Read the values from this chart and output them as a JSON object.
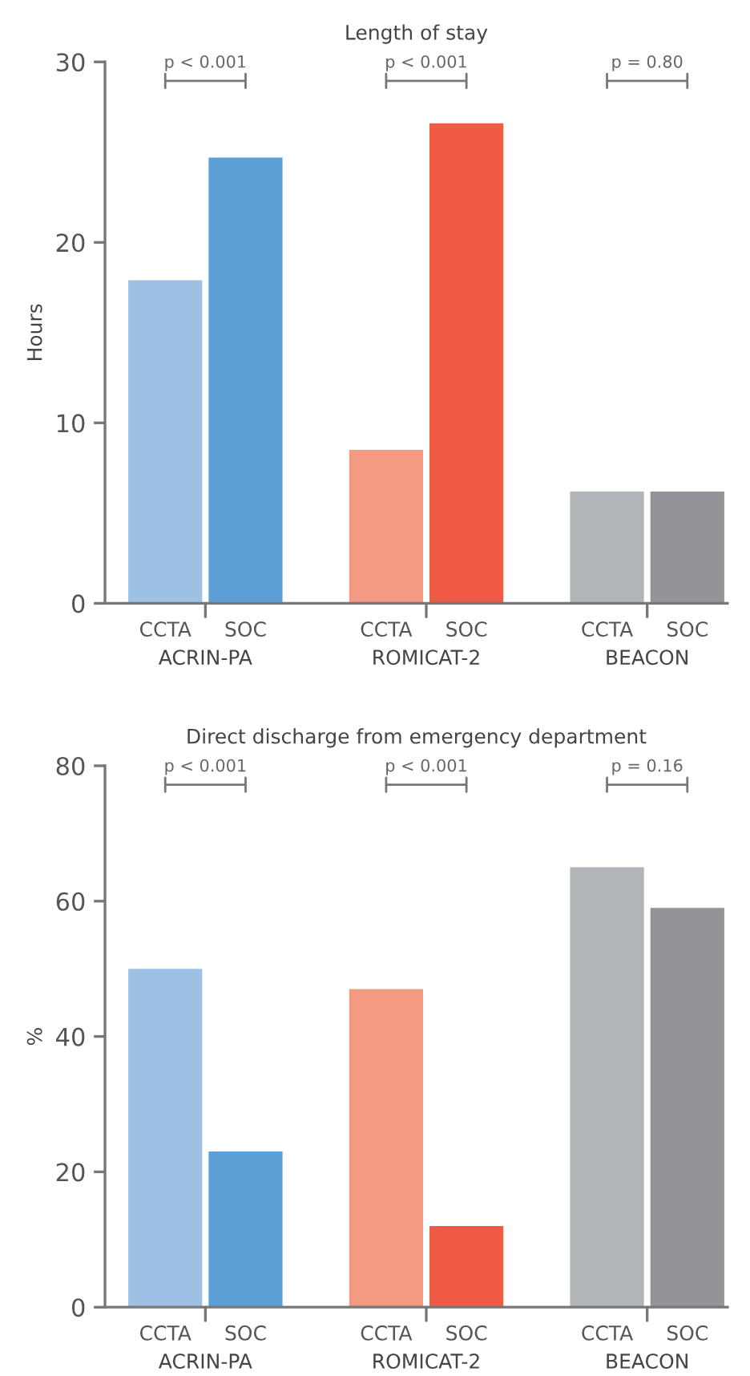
{
  "chart_data": [
    {
      "type": "bar",
      "title": "Length of stay",
      "ylabel": "Hours",
      "categories": [
        "CCTA",
        "SOC",
        "CCTA",
        "SOC",
        "CCTA",
        "SOC"
      ],
      "values": [
        17.9,
        24.7,
        8.5,
        26.6,
        6.2,
        6.2
      ],
      "colors": [
        "#9dc0e5",
        "#5c9fd6",
        "#f49a82",
        "#f05b45",
        "#b2b5b9",
        "#929499"
      ],
      "ylim": [
        0,
        30
      ],
      "yticks": [
        0,
        10,
        20,
        30
      ],
      "grid": false,
      "legend": false,
      "annotations": [
        "p < 0.001",
        "p < 0.001",
        "p = 0.80",
        "ACRIN-PA",
        "ROMICAT-2",
        "BEACON"
      ]
    },
    {
      "type": "bar",
      "title": "Direct discharge from emergency department",
      "ylabel": "%",
      "categories": [
        "CCTA",
        "SOC",
        "CCTA",
        "SOC",
        "CCTA",
        "SOC"
      ],
      "values": [
        50,
        23,
        47,
        12,
        65,
        59
      ],
      "colors": [
        "#9dc0e5",
        "#5c9fd6",
        "#f49a82",
        "#f05b45",
        "#b2b5b9",
        "#929499"
      ],
      "ylim": [
        0,
        80
      ],
      "yticks": [
        0,
        20,
        40,
        60,
        80
      ],
      "grid": false,
      "legend": false,
      "annotations": [
        "p < 0.001",
        "p < 0.001",
        "p = 0.16",
        "ACRIN-PA",
        "ROMICAT-2",
        "BEACON"
      ]
    }
  ]
}
